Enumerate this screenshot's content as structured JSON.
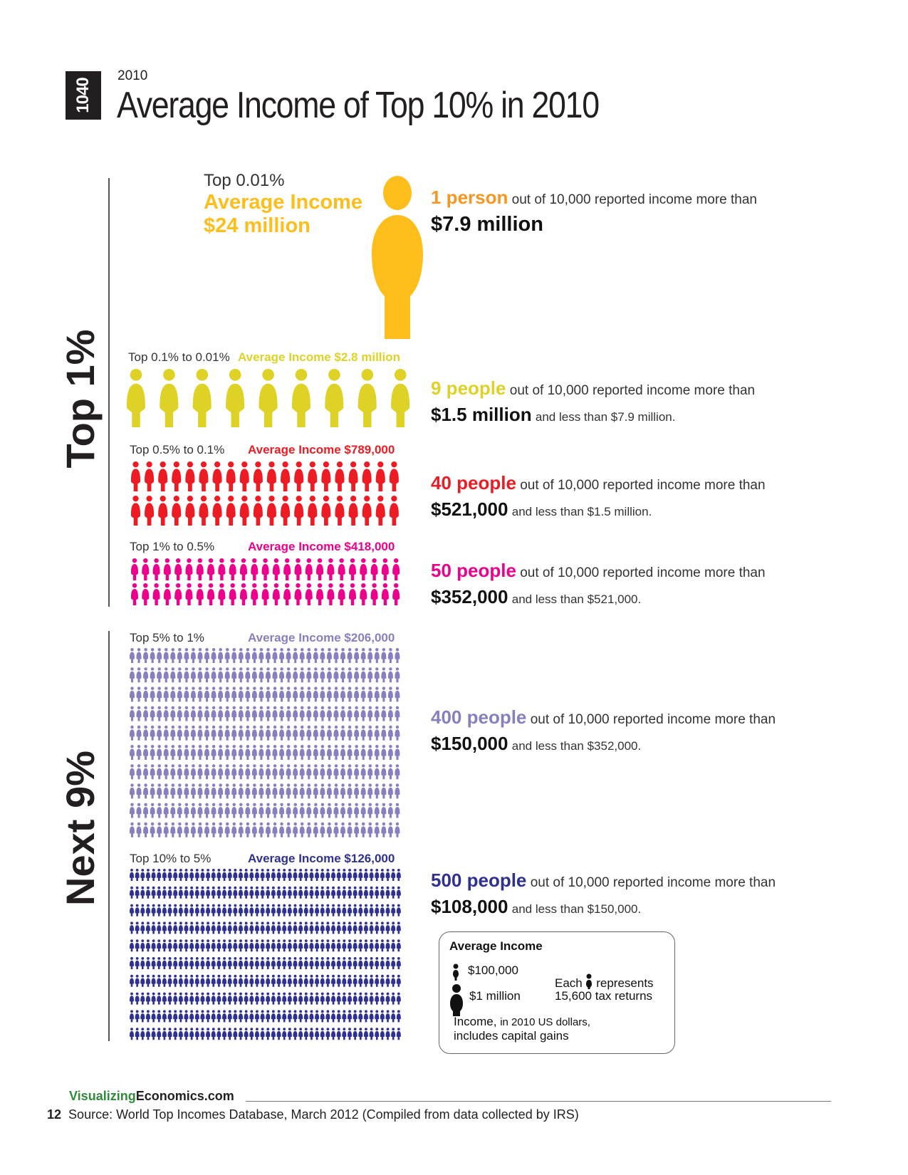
{
  "header": {
    "logo_text": "1040",
    "year": "2010",
    "title": "Average Income of Top 10% in 2010"
  },
  "groups": {
    "top1": "Top 1%",
    "next9": "Next 9%"
  },
  "colors": {
    "t001": "#fdbe1c",
    "t001_count": "#f79620",
    "t01": "#dfd226",
    "t05": "#ed1c24",
    "t1": "#ec008c",
    "t5": "#8780c0",
    "t10": "#2e3192"
  },
  "tiers": [
    {
      "id": "t001",
      "range": "Top 0.01%",
      "avg_label": "Average Income",
      "avg_value": "$24 million",
      "count": "1 person",
      "text": "out of 10,000 reported income more than",
      "min": "$7.9 million",
      "max_text": "",
      "people": 1
    },
    {
      "id": "t01",
      "range": "Top 0.1% to 0.01%",
      "avg": "Average Income $2.8 million",
      "count": "9 people",
      "text": "out of 10,000 reported income more than",
      "min": "$1.5 million",
      "max_text": "and less than $7.9 million.",
      "people": 9
    },
    {
      "id": "t05",
      "range": "Top 0.5% to 0.1%",
      "avg": "Average Income $789,000",
      "count": "40 people",
      "text": "out of 10,000 reported income more than",
      "min": "$521,000",
      "max_text": "and less than $1.5 million.",
      "people": 40
    },
    {
      "id": "t1",
      "range": "Top 1% to 0.5%",
      "avg": "Average Income $418,000",
      "count": "50 people",
      "text": "out of 10,000 reported income more than",
      "min": "$352,000",
      "max_text": "and less than $521,000.",
      "people": 50
    },
    {
      "id": "t5",
      "range": "Top 5% to 1%",
      "avg": "Average Income $206,000",
      "count": "400 people",
      "text": "out of 10,000 reported income more than",
      "min": "$150,000",
      "max_text": "and less than $352,000.",
      "people": 400
    },
    {
      "id": "t10",
      "range": "Top 10% to 5%",
      "avg": "Average Income $126,000",
      "count": "500 people",
      "text": "out of 10,000 reported income more than",
      "min": "$108,000",
      "max_text": "and less than $150,000.",
      "people": 500
    }
  ],
  "legend": {
    "title": "Average Income",
    "small": "$100,000",
    "large": "$1 million",
    "each_prefix": "Each",
    "each_suffix": "represents",
    "each_line2": "15,600 tax returns",
    "note_line1_a": "Income,",
    "note_line1_b": "in 2010 US dollars,",
    "note_line2": "includes capital gains"
  },
  "footer": {
    "brand_a": "Visualizing",
    "brand_b": "Economics.com",
    "page_number": "12",
    "source": "Source: World Top Incomes Database, March 2012 (Compiled from data collected by IRS)"
  }
}
